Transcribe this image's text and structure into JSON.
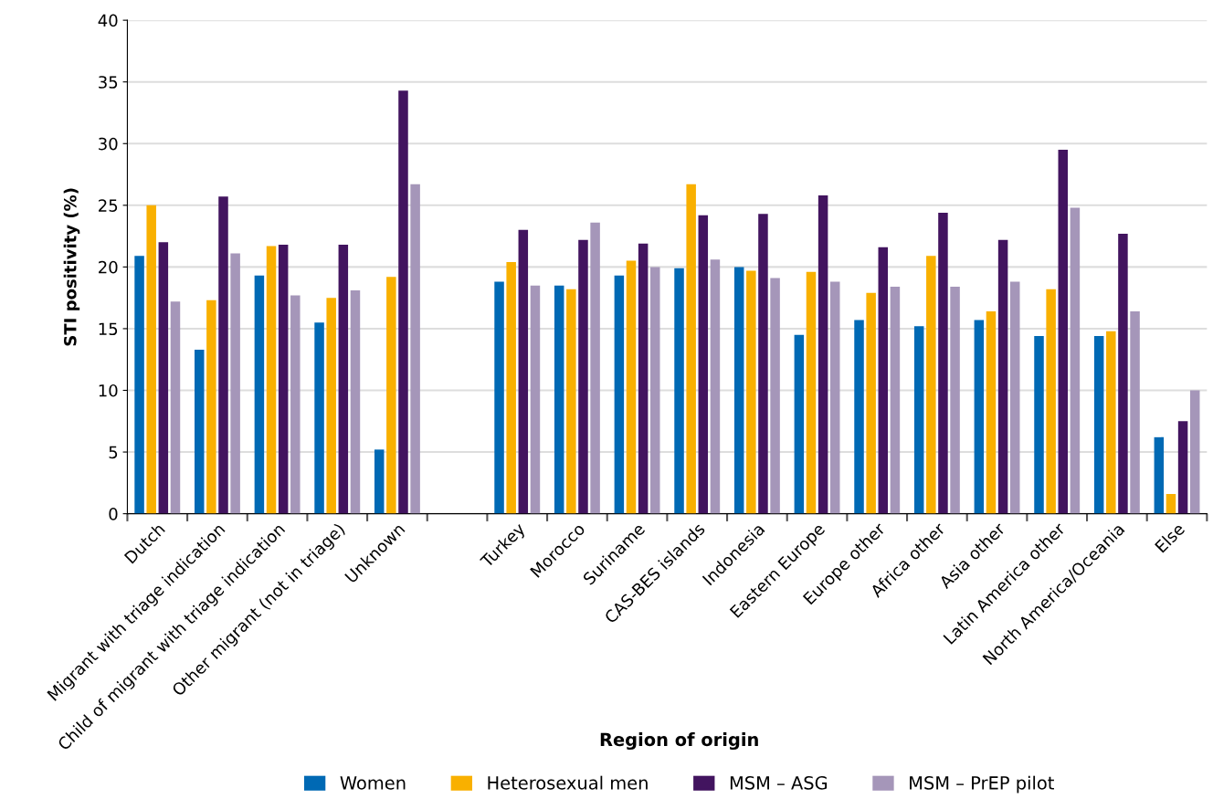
{
  "chart_data": {
    "type": "bar",
    "xlabel": "Region of origin",
    "ylabel": "STI positivity (%)",
    "categories": [
      "Dutch",
      "Migrant with triage indication",
      "Child of migrant with triage indication",
      "Other migrant (not in triage)",
      "Unknown",
      null,
      "Turkey",
      "Morocco",
      "Suriname",
      "CAS-BES islands",
      "Indonesia",
      "Eastern Europe",
      "Europe other",
      "Africa other",
      "Asia other",
      "Latin America other",
      "North America/Oceania",
      "Else"
    ],
    "series": [
      {
        "name": "Women",
        "color": "#0069b4",
        "values": [
          20.9,
          13.3,
          19.3,
          15.5,
          5.2,
          null,
          18.8,
          18.5,
          19.3,
          19.9,
          20.0,
          14.5,
          15.7,
          15.2,
          15.7,
          14.4,
          14.4,
          6.2
        ]
      },
      {
        "name": "Heterosexual men",
        "color": "#f9b000",
        "values": [
          25.0,
          17.3,
          21.7,
          17.5,
          19.2,
          null,
          20.4,
          18.2,
          20.5,
          26.7,
          19.7,
          19.6,
          17.9,
          20.9,
          16.4,
          18.2,
          14.8,
          1.6
        ]
      },
      {
        "name": "MSM – ASG",
        "color": "#42145f",
        "values": [
          22.0,
          25.7,
          21.8,
          21.8,
          34.3,
          null,
          23.0,
          22.2,
          21.9,
          24.2,
          24.3,
          25.8,
          21.6,
          24.4,
          22.2,
          29.5,
          22.7,
          7.5
        ]
      },
      {
        "name": "MSM – PrEP pilot",
        "color": "#a596b9",
        "values": [
          17.2,
          21.1,
          17.7,
          18.1,
          26.7,
          null,
          18.5,
          23.6,
          20.0,
          20.6,
          19.1,
          18.8,
          18.4,
          18.4,
          18.8,
          24.8,
          16.4,
          10.0
        ]
      }
    ],
    "ylim": [
      0,
      40
    ],
    "yticks": [
      0,
      5,
      10,
      15,
      20,
      25,
      30,
      35,
      40
    ],
    "grid": "y",
    "legend": "bottom"
  }
}
